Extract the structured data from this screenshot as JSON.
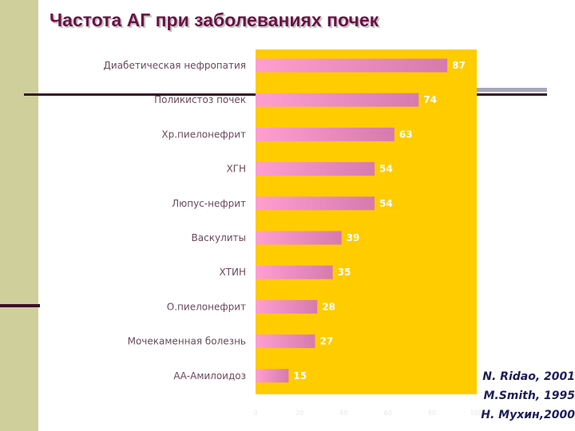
{
  "slide": {
    "title": "Частота АГ при заболеваниях почек",
    "citations": [
      "N. Ridao, 2001",
      "M.Smith, 1995",
      "Н. Мухин,2000"
    ]
  },
  "colors": {
    "plot_background": "#ffcc00",
    "bar_gradient_start": "#ff9fd0",
    "bar_gradient_end": "#d67aae",
    "title": "#6a1245"
  },
  "chart_data": {
    "type": "bar",
    "orientation": "horizontal",
    "title": "Частота АГ при заболеваниях почек",
    "categories": [
      "Диабетическая нефропатия",
      "Поликистоз почек",
      "Хр.пиелонефрит",
      "ХГН",
      "Люпус-нефрит",
      "Васкулиты",
      "ХТИН",
      "О.пиелонефрит",
      "Мочекаменная болезнь",
      "АА-Амилоидоз"
    ],
    "values": [
      87,
      74,
      63,
      54,
      54,
      39,
      35,
      28,
      27,
      15
    ],
    "xlim": [
      0,
      100
    ],
    "x_ticks": [
      0,
      20,
      40,
      60,
      80,
      100
    ],
    "data_labels": true,
    "grid": false,
    "legend": "none"
  }
}
